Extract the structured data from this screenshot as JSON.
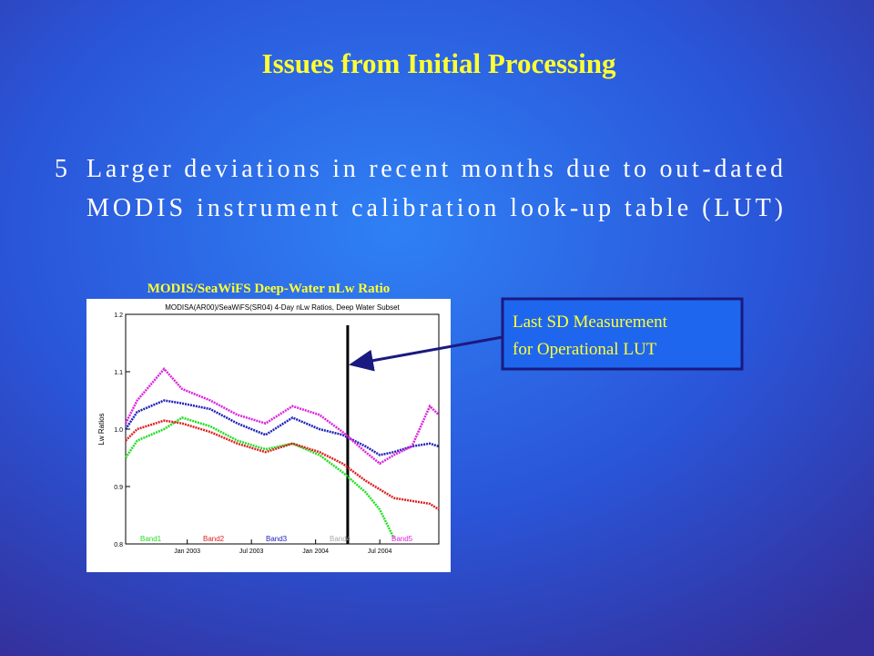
{
  "title": "Issues from Initial Processing",
  "bullet": {
    "marker": "5",
    "lines": [
      "Larger deviations in recent months due to out-dated",
      "MODIS instrument calibration look-up table (LUT)"
    ]
  },
  "chart_caption": "MODIS/SeaWiFS Deep-Water  nLw Ratio",
  "callout": {
    "lines": [
      "Last SD Measurement",
      "for Operational LUT"
    ]
  },
  "chart_data": {
    "type": "line",
    "title": "MODISA(AR00)/SeaWiFS(SR04) 4-Day nLw Ratios, Deep Water Subset",
    "ylabel": "Lw Ratios",
    "x": [
      2002.52,
      2002.61,
      2002.82,
      2002.96,
      2003.18,
      2003.39,
      2003.61,
      2003.82,
      2004.03,
      2004.21,
      2004.39,
      2004.5,
      2004.61,
      2004.75,
      2004.89,
      2004.96
    ],
    "series": [
      {
        "name": "Band1",
        "color": "#22dd22",
        "values": [
          0.95,
          0.98,
          1.0,
          1.02,
          1.005,
          0.98,
          0.965,
          0.975,
          0.955,
          0.925,
          0.89,
          0.86,
          0.81,
          null,
          null,
          null
        ]
      },
      {
        "name": "Band2",
        "color": "#dd2020",
        "values": [
          0.98,
          1.0,
          1.015,
          1.01,
          0.995,
          0.975,
          0.96,
          0.975,
          0.96,
          0.94,
          0.91,
          0.895,
          0.88,
          0.875,
          0.87,
          0.86
        ]
      },
      {
        "name": "Band3",
        "color": "#2020bb",
        "values": [
          1.0,
          1.03,
          1.05,
          1.045,
          1.035,
          1.01,
          0.99,
          1.02,
          1.0,
          0.99,
          0.97,
          0.955,
          0.96,
          0.97,
          0.975,
          0.97
        ]
      },
      {
        "name": "Band4",
        "color": "#aaaaaa",
        "values": [
          null,
          null,
          null,
          null,
          null,
          null,
          null,
          null,
          null,
          null,
          null,
          null,
          null,
          null,
          null,
          null
        ]
      },
      {
        "name": "Band5",
        "color": "#dd22dd",
        "values": [
          1.01,
          1.05,
          1.105,
          1.07,
          1.05,
          1.025,
          1.01,
          1.04,
          1.025,
          0.995,
          0.96,
          0.94,
          0.955,
          0.97,
          1.04,
          1.025
        ]
      }
    ],
    "marker_x": 2004.25,
    "xlim": [
      2002.52,
      2004.96
    ],
    "xticks": [
      {
        "value": 2003,
        "label": "Jan 2003"
      },
      {
        "value": 2003.5,
        "label": "Jul 2003"
      },
      {
        "value": 2004,
        "label": "Jan 2004"
      },
      {
        "value": 2004.5,
        "label": "Jul 2004"
      }
    ],
    "ylim": [
      0.8,
      1.2
    ],
    "yticks": [
      0.8,
      0.9,
      {
        "value": 1.0,
        "label": "1.0"
      },
      1.1,
      1.2
    ]
  }
}
